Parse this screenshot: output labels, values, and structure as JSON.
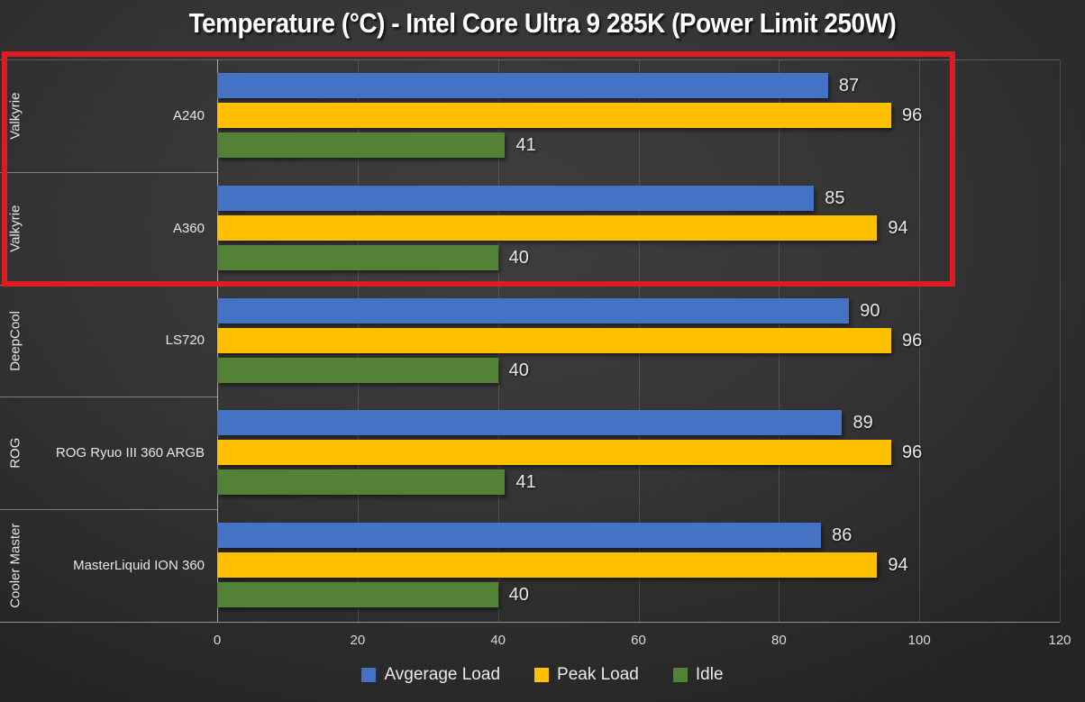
{
  "title": "Temperature (°C) - Intel Core Ultra 9 285K (Power Limit 250W)",
  "chart_data": {
    "type": "bar",
    "orientation": "horizontal",
    "title": "Temperature (°C) - Intel Core Ultra 9 285K (Power Limit 250W)",
    "xlim": [
      0,
      120
    ],
    "x_ticks": [
      0,
      20,
      40,
      60,
      80,
      100,
      120
    ],
    "grid": true,
    "legend_position": "bottom",
    "categories": [
      {
        "brand": "Valkyrie",
        "model": "A240"
      },
      {
        "brand": "Valkyrie",
        "model": "A360"
      },
      {
        "brand": "DeepCool",
        "model": "LS720"
      },
      {
        "brand": "ROG",
        "model": "ROG Ryuo III 360 ARGB"
      },
      {
        "brand": "Cooler Master",
        "model": "MasterLiquid ION 360"
      }
    ],
    "series": [
      {
        "name": "Avgerage Load",
        "color": "#4472C4",
        "values": [
          87,
          85,
          90,
          89,
          86
        ]
      },
      {
        "name": "Peak Load",
        "color": "#FFC000",
        "values": [
          96,
          94,
          96,
          96,
          94
        ]
      },
      {
        "name": "Idle",
        "color": "#538135",
        "values": [
          41,
          40,
          40,
          41,
          40
        ]
      }
    ],
    "annotation": {
      "type": "highlight-rectangle",
      "color": "#DE1B22",
      "highlighted_models": [
        "A240",
        "A360"
      ]
    }
  }
}
